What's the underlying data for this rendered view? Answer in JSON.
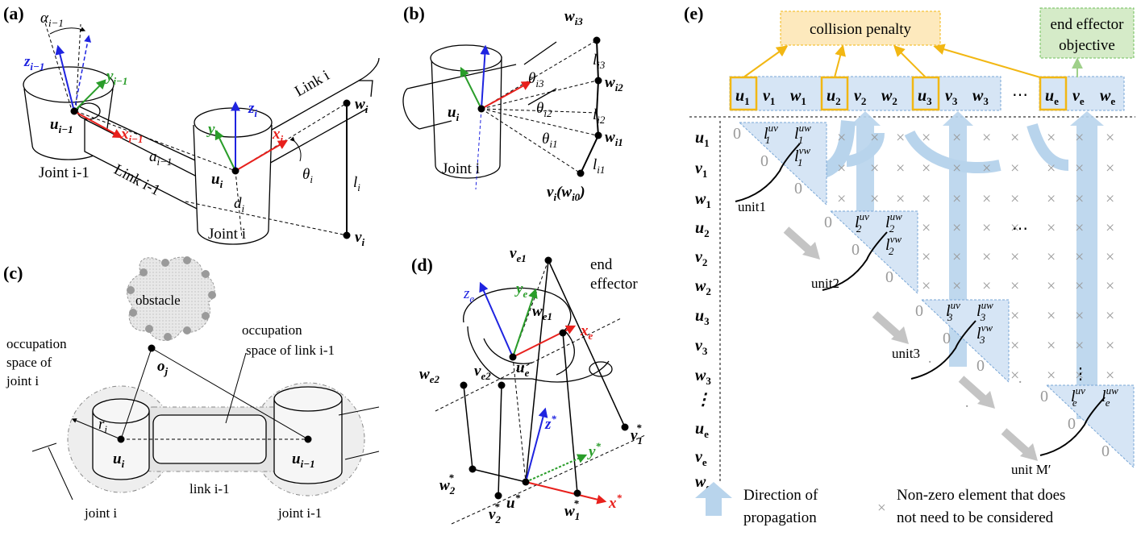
{
  "panels": {
    "a": {
      "tag": "(a)",
      "alpha": "α",
      "alpha_sub": "i−1",
      "z_prev": "z",
      "z_prev_sub": "i−1",
      "y_prev": "y",
      "y_prev_sub": "i−1",
      "x_prev": "x",
      "x_prev_sub": "i−1",
      "u_prev": "u",
      "u_prev_sub": "i−1",
      "a_prev": "a",
      "a_prev_sub": "i−1",
      "joint_prev": "Joint i-1",
      "link_prev": "Link i-1",
      "z_i": "z",
      "y_i": "y",
      "x_i": "x",
      "u_i": "u",
      "sub_i": "i",
      "d_i": "d",
      "theta_i": "θ",
      "l_i": "l",
      "w_i": "w",
      "v_i": "v",
      "link_i": "Link i",
      "joint_i": "Joint i"
    },
    "b": {
      "tag": "(b)",
      "w3": "w",
      "w3_sub": "i3",
      "w2": "w",
      "w2_sub": "i2",
      "w1": "w",
      "w1_sub": "i1",
      "l3": "l",
      "l3_sub": "i3",
      "l2": "l",
      "l2_sub": "i2",
      "l1": "l",
      "l1_sub": "i1",
      "t3": "θ",
      "t3_sub": "i3",
      "t2": "θ",
      "t2_sub": "i2",
      "t1": "θ",
      "t1_sub": "i1",
      "u": "u",
      "u_sub": "i",
      "v": "v",
      "v_sub": "i",
      "v_paren": "(w",
      "v_paren_sub": "i0",
      "v_close": ")",
      "joint": "Joint i"
    },
    "c": {
      "tag": "(c)",
      "obstacle": "obstacle",
      "occ_link_1": "occupation",
      "occ_link_2": "space of link i-1",
      "occ_joint_1": "occupation",
      "occ_joint_2": "space of",
      "occ_joint_3": "joint i",
      "o": "o",
      "o_sub": "j",
      "r": "r",
      "r_sub": "i",
      "u": "u",
      "u_sub": "i",
      "u_prev": "u",
      "u_prev_sub": "i−1",
      "link": "link i-1",
      "joint": "joint i",
      "joint_prev": "joint i-1"
    },
    "d": {
      "tag": "(d)",
      "ve1": "v",
      "ve1_sub": "e1",
      "end1": "end",
      "end2": "effector",
      "ze": "z",
      "ze_sub": "e",
      "ye": "y",
      "ye_sub": "e",
      "we1": "w",
      "we1_sub": "e1",
      "xe": "x",
      "xe_sub": "e",
      "we2": "w",
      "we2_sub": "e2",
      "ve2": "v",
      "ve2_sub": "e2",
      "ue": "u",
      "ue_sub": "e",
      "zs": "z",
      "ys": "y",
      "xs": "x",
      "star": "*",
      "v1s": "v",
      "v1s_sub": "1",
      "w2s": "w",
      "w2s_sub": "2",
      "us": "u",
      "v2s": "v",
      "v2s_sub": "2",
      "w1s": "w",
      "w1s_sub": "1"
    },
    "e": {
      "tag": "(e)",
      "collision": "collision penalty",
      "end_obj_1": "end effector",
      "end_obj_2": "objective",
      "header": [
        {
          "s": "u",
          "b": "1"
        },
        {
          "s": "v",
          "b": "1"
        },
        {
          "s": "w",
          "b": "1"
        },
        {
          "s": "u",
          "b": "2"
        },
        {
          "s": "v",
          "b": "2"
        },
        {
          "s": "w",
          "b": "2"
        },
        {
          "s": "u",
          "b": "3"
        },
        {
          "s": "v",
          "b": "3"
        },
        {
          "s": "w",
          "b": "3"
        },
        {
          "s": "u",
          "b": "e"
        },
        {
          "s": "v",
          "b": "e"
        },
        {
          "s": "w",
          "b": "e"
        }
      ],
      "rows": [
        {
          "s": "u",
          "b": "1"
        },
        {
          "s": "v",
          "b": "1"
        },
        {
          "s": "w",
          "b": "1"
        },
        {
          "s": "u",
          "b": "2"
        },
        {
          "s": "v",
          "b": "2"
        },
        {
          "s": "w",
          "b": "2"
        },
        {
          "s": "u",
          "b": "3"
        },
        {
          "s": "v",
          "b": "3"
        },
        {
          "s": "w",
          "b": "3"
        },
        {
          "s": "⋮",
          "b": ""
        },
        {
          "s": "u",
          "b": "e"
        },
        {
          "s": "v",
          "b": "e"
        },
        {
          "s": "w",
          "b": "e"
        }
      ],
      "dots": "⋯",
      "vdots": "⋮",
      "zero": "0",
      "cross": "×",
      "l": "l",
      "units": [
        "unit1",
        "unit2",
        "unit3",
        "unit M′"
      ],
      "blocks": [
        {
          "sub": "1"
        },
        {
          "sub": "2"
        },
        {
          "sub": "3"
        },
        {
          "sub": "e"
        }
      ],
      "sup_uv": "uv",
      "sup_uw": "uw",
      "sup_vw": "vw",
      "legend_arrow_1": "Direction of",
      "legend_arrow_2": "propagation",
      "legend_cross_1": "Non-zero element that does",
      "legend_cross_2": "not need to be considered"
    }
  },
  "colors": {
    "red": "#e8201c",
    "green": "#2a9d2a",
    "blue": "#1f24e0",
    "arrow_blue": "#b8d4ec",
    "block_blue": "#d6e5f5",
    "orange": "#f2b713",
    "collision_fill": "#fde9bd",
    "endobj_fill": "#d5ebc8",
    "gray_arrow": "#c4c4c4"
  }
}
